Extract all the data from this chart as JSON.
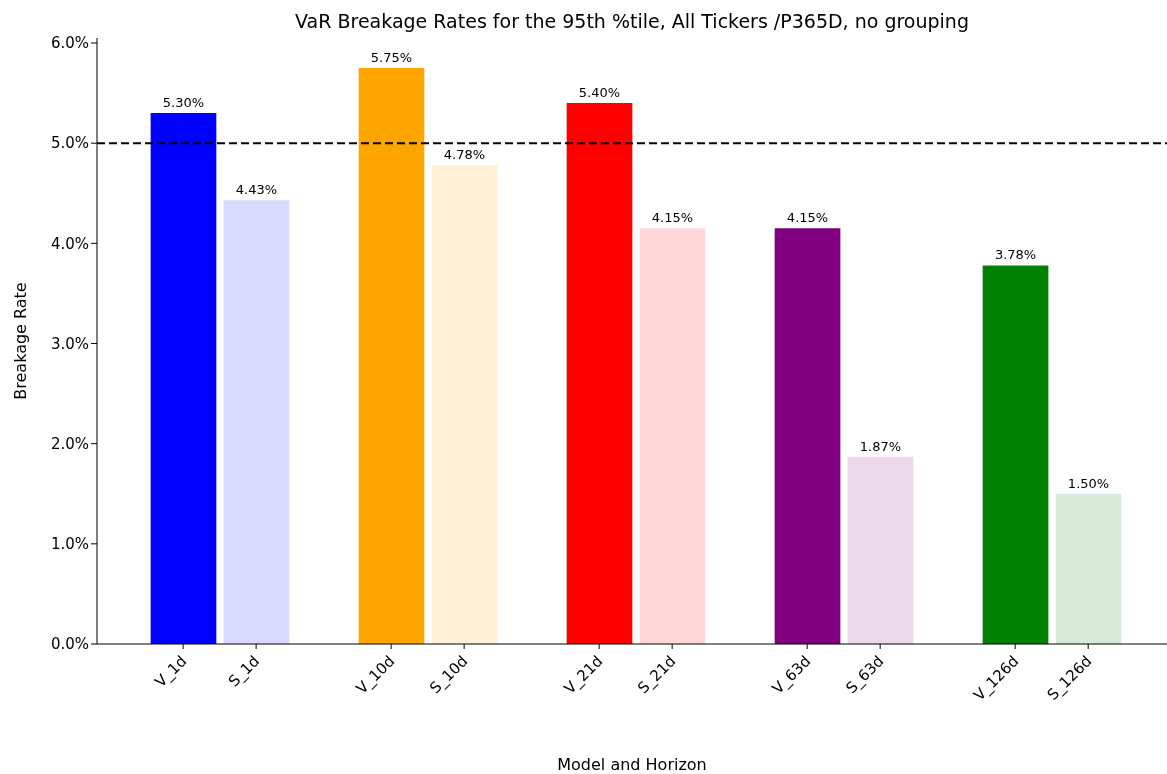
{
  "chart_data": {
    "type": "bar",
    "title": "VaR Breakage Rates for the 95th %tile, All Tickers /P365D, no grouping",
    "xlabel": "Model and Horizon",
    "ylabel": "Breakage Rate",
    "categories": [
      "V_1d",
      "S_1d",
      "V_10d",
      "S_10d",
      "V_21d",
      "S_21d",
      "V_63d",
      "S_63d",
      "V_126d",
      "S_126d"
    ],
    "values": [
      5.3,
      4.43,
      5.75,
      4.78,
      5.4,
      4.15,
      4.15,
      1.87,
      3.78,
      1.5
    ],
    "value_labels": [
      "5.30%",
      "4.43%",
      "5.75%",
      "4.78%",
      "5.40%",
      "4.15%",
      "4.15%",
      "1.87%",
      "3.78%",
      "1.50%"
    ],
    "colors": [
      "#0000ff",
      "#d9d9ff",
      "#ffa500",
      "#fff2d9",
      "#ff0000",
      "#ffd9d9",
      "#800080",
      "#ecd9ec",
      "#008000",
      "#d9ecd9"
    ],
    "ylim": [
      0,
      6.05
    ],
    "yticks": [
      {
        "value": 0,
        "label": "0.0%"
      },
      {
        "value": 1,
        "label": "1.0%"
      },
      {
        "value": 2,
        "label": "2.0%"
      },
      {
        "value": 3,
        "label": "3.0%"
      },
      {
        "value": 4,
        "label": "4.0%"
      },
      {
        "value": 5,
        "label": "5.0%"
      },
      {
        "value": 6,
        "label": "6.0%"
      }
    ],
    "ref_lines": [
      {
        "axis": "y",
        "value": 5,
        "color": "#000000",
        "line_style": "dashed"
      }
    ],
    "grid": false,
    "legend": false
  }
}
